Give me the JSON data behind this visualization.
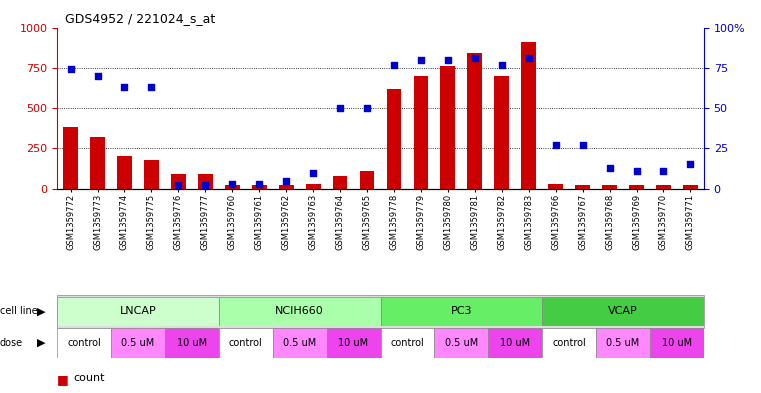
{
  "title": "GDS4952 / 221024_s_at",
  "samples": [
    "GSM1359772",
    "GSM1359773",
    "GSM1359774",
    "GSM1359775",
    "GSM1359776",
    "GSM1359777",
    "GSM1359760",
    "GSM1359761",
    "GSM1359762",
    "GSM1359763",
    "GSM1359764",
    "GSM1359765",
    "GSM1359778",
    "GSM1359779",
    "GSM1359780",
    "GSM1359781",
    "GSM1359782",
    "GSM1359783",
    "GSM1359766",
    "GSM1359767",
    "GSM1359768",
    "GSM1359769",
    "GSM1359770",
    "GSM1359771"
  ],
  "counts": [
    380,
    320,
    200,
    175,
    90,
    90,
    25,
    20,
    25,
    30,
    80,
    110,
    620,
    700,
    760,
    840,
    700,
    910,
    30,
    25,
    25,
    25,
    25,
    25
  ],
  "percentiles": [
    74,
    70,
    63,
    63,
    2,
    2,
    3,
    3,
    5,
    10,
    50,
    50,
    77,
    80,
    80,
    81,
    77,
    81,
    27,
    27,
    13,
    11,
    11,
    15
  ],
  "bar_color": "#cc0000",
  "dot_color": "#0000cc",
  "ylim_left": [
    0,
    1000
  ],
  "ylim_right": [
    0,
    100
  ],
  "yticks_left": [
    0,
    250,
    500,
    750,
    1000
  ],
  "yticks_right": [
    0,
    25,
    50,
    75,
    100
  ],
  "ytick_labels_right": [
    "0",
    "25",
    "50",
    "75",
    "100%"
  ],
  "grid_values": [
    250,
    500,
    750
  ],
  "cell_line_groups": [
    {
      "name": "LNCAP",
      "start": 0,
      "end": 6,
      "color": "#ccffcc"
    },
    {
      "name": "NCIH660",
      "start": 6,
      "end": 12,
      "color": "#aaffaa"
    },
    {
      "name": "PC3",
      "start": 12,
      "end": 18,
      "color": "#66ee66"
    },
    {
      "name": "VCAP",
      "start": 18,
      "end": 24,
      "color": "#44cc44"
    }
  ],
  "dose_groups": [
    {
      "start": 0,
      "end": 2,
      "label": "control",
      "color": "#ffffff"
    },
    {
      "start": 2,
      "end": 4,
      "label": "0.5 uM",
      "color": "#ff88ff"
    },
    {
      "start": 4,
      "end": 6,
      "label": "10 uM",
      "color": "#ee44ee"
    },
    {
      "start": 6,
      "end": 8,
      "label": "control",
      "color": "#ffffff"
    },
    {
      "start": 8,
      "end": 10,
      "label": "0.5 uM",
      "color": "#ff88ff"
    },
    {
      "start": 10,
      "end": 12,
      "label": "10 uM",
      "color": "#ee44ee"
    },
    {
      "start": 12,
      "end": 14,
      "label": "control",
      "color": "#ffffff"
    },
    {
      "start": 14,
      "end": 16,
      "label": "0.5 uM",
      "color": "#ff88ff"
    },
    {
      "start": 16,
      "end": 18,
      "label": "10 uM",
      "color": "#ee44ee"
    },
    {
      "start": 18,
      "end": 20,
      "label": "control",
      "color": "#ffffff"
    },
    {
      "start": 20,
      "end": 22,
      "label": "0.5 uM",
      "color": "#ff88ff"
    },
    {
      "start": 22,
      "end": 24,
      "label": "10 uM",
      "color": "#ee44ee"
    }
  ],
  "axis_color_left": "#cc0000",
  "axis_color_right": "#0000cc",
  "tick_bg_color": "#dddddd",
  "title_fontsize": 9,
  "bar_width": 0.55
}
